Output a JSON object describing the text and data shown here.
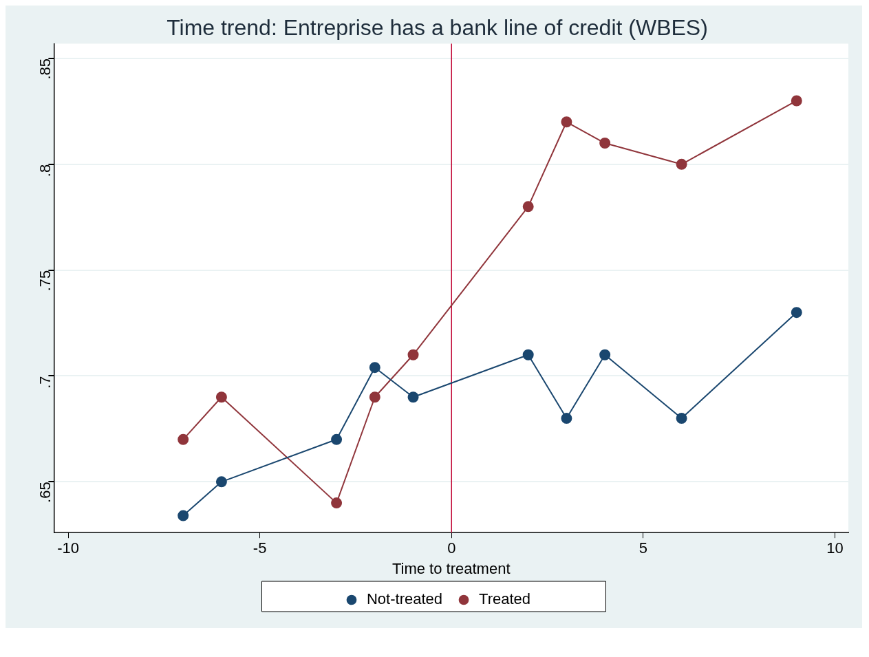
{
  "chart_data": {
    "type": "line",
    "title": "Time trend: Entreprise has a bank line of credit (WBES)",
    "xlabel": "Time to treatment",
    "x": [
      -7,
      -6,
      -3,
      -2,
      -1,
      2,
      3,
      4,
      6,
      9
    ],
    "series": [
      {
        "name": "Not-treated",
        "color": "#1a476f",
        "values": [
          0.634,
          0.65,
          0.67,
          0.704,
          0.69,
          0.71,
          0.68,
          0.71,
          0.68,
          0.73
        ]
      },
      {
        "name": "Treated",
        "color": "#90353b",
        "values": [
          0.67,
          0.69,
          0.64,
          0.69,
          0.71,
          0.78,
          0.82,
          0.81,
          0.8,
          0.83
        ]
      }
    ],
    "xlim": [
      -10.37,
      10.35
    ],
    "xticks": [
      -10,
      -5,
      0,
      5,
      10
    ],
    "ylim": [
      0.626,
      0.857
    ],
    "yticks": [
      {
        "value": 0.65,
        "label": ".65"
      },
      {
        "value": 0.7,
        "label": ".7"
      },
      {
        "value": 0.75,
        "label": ".75"
      },
      {
        "value": 0.8,
        "label": ".8"
      },
      {
        "value": 0.85,
        "label": ".85"
      }
    ],
    "ref_lines": [
      {
        "axis": "x",
        "value": 0,
        "color": "#c10534"
      }
    ],
    "grid": "y",
    "legend": "bottom",
    "marker": "circle",
    "line_style": "solid"
  }
}
